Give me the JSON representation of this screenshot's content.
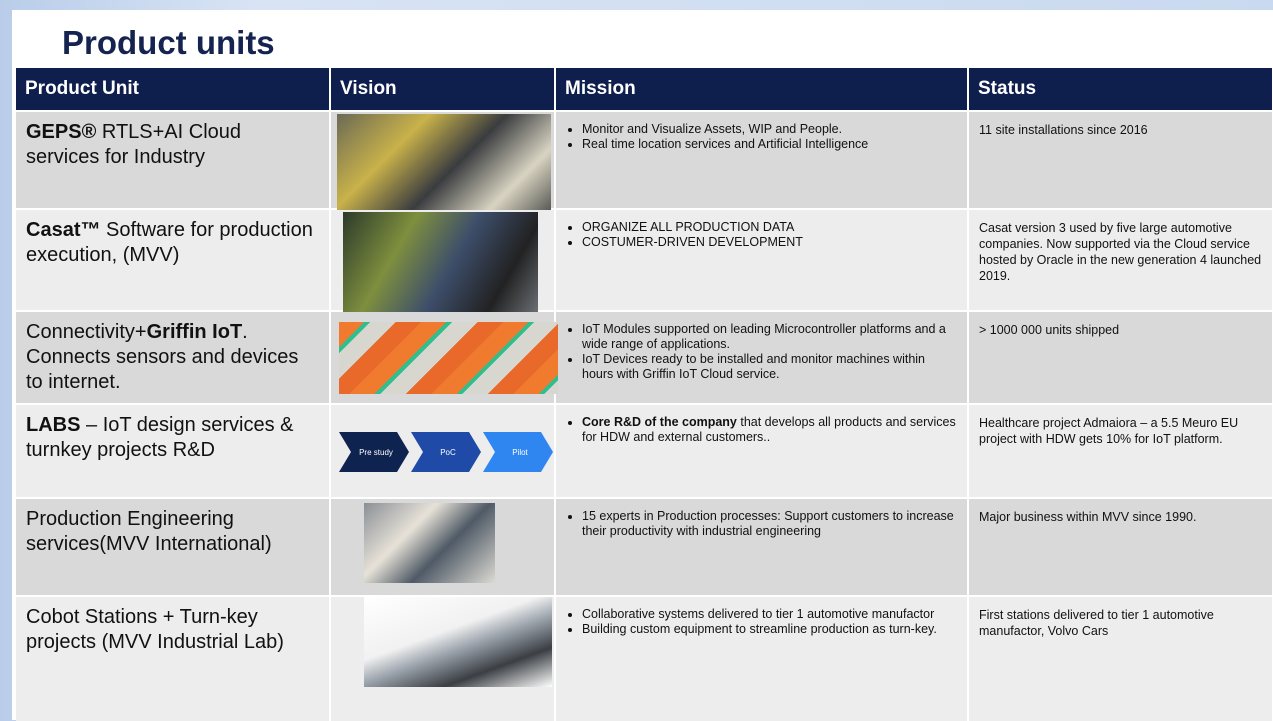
{
  "title": "Product units",
  "table": {
    "header": [
      "Product Unit",
      "Vision",
      "Mission",
      "Status"
    ],
    "rows": [
      {
        "unit": [
          {
            "text": "GEPS®",
            "bold": true
          },
          {
            "text": " RTLS+AI Cloud services for Industry"
          }
        ],
        "mission": [
          "Monitor and Visualize Assets, WIP and People.",
          "Real time location services and Artificial Intelligence"
        ],
        "status": "11 site installations since 2016"
      },
      {
        "unit": [
          {
            "text": "Casat™",
            "bold": true
          },
          {
            "text": " Software for production execution, (MVV)"
          }
        ],
        "mission": [
          "ORGANIZE ALL PRODUCTION DATA",
          "COSTUMER-DRIVEN DEVELOPMENT"
        ],
        "status": "Casat version 3 used by five large automotive companies. Now supported via the Cloud service hosted by Oracle in the new generation 4 launched 2019."
      },
      {
        "unit": [
          {
            "text": "Connectivity+"
          },
          {
            "text": "Griffin IoT",
            "bold": true
          },
          {
            "text": ". Connects sensors and devices to internet."
          }
        ],
        "mission": [
          "IoT Modules supported on leading Microcontroller platforms and a wide range of applications.",
          "IoT Devices ready to be installed and monitor machines within hours with Griffin IoT Cloud service."
        ],
        "status": "> 1000 000 units shipped"
      },
      {
        "unit": [
          {
            "text": "LABS",
            "bold": true
          },
          {
            "text": " – IoT design services & turnkey projects R&D"
          }
        ],
        "vision_steps": [
          "Pre study",
          "PoC",
          "Pilot"
        ],
        "mission": [
          {
            "bold": "Core R&D of the company",
            "text": " that develops all products and services for HDW and external customers.."
          }
        ],
        "status": "Healthcare project Admaiora – a 5.5 Meuro EU project with HDW gets 10% for IoT platform."
      },
      {
        "unit": [
          {
            "text": "Production Engineering services(MVV International)"
          }
        ],
        "mission": [
          "15 experts in Production processes: Support customers to increase their productivity with industrial engineering"
        ],
        "status": "Major business within MVV since 1990."
      },
      {
        "unit": [
          {
            "text": "Cobot Stations + Turn-key projects (MVV Industrial Lab)"
          }
        ],
        "mission": [
          "Collaborative systems delivered to tier 1 automotive manufactor",
          "Building custom equipment to streamline production as turn-key."
        ],
        "status": "First stations delivered to tier 1 automotive manufactor, Volvo Cars"
      }
    ]
  }
}
